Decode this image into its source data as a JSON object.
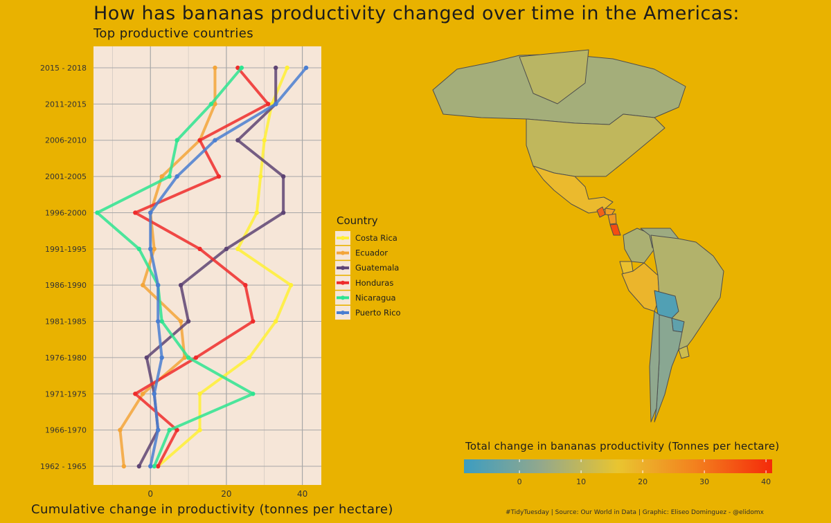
{
  "header": {
    "title": "How has bananas productivity changed over time in the Americas:",
    "subtitle": "Top productive countries"
  },
  "caption": "#TidyTuesday | Source: Our World in Data | Graphic: Eliseo Dominguez - @elidomx",
  "colors": {
    "background": "#E9B200",
    "panel": "#F6E6D8",
    "grid": "#A7A7A7"
  },
  "chart_data": [
    {
      "type": "line",
      "xlabel": "Cumulative change in productivity (tonnes per hectare)",
      "xlim": [
        -15,
        45
      ],
      "xticks": [
        0,
        20,
        40
      ],
      "categories": [
        "1962 - 1965",
        "1966-1970",
        "1971-1975",
        "1976-1980",
        "1981-1985",
        "1986-1990",
        "1991-1995",
        "1996-2000",
        "2001-2005",
        "2006-2010",
        "2011-2015",
        "2015 - 2018"
      ],
      "legend": {
        "title": "Country",
        "position": "right"
      },
      "series": [
        {
          "name": "Costa Rica",
          "color": "#FFF035",
          "values": [
            2,
            13,
            13,
            26,
            33,
            37,
            23,
            28,
            29,
            30,
            32,
            36
          ]
        },
        {
          "name": "Ecuador",
          "color": "#F3A53A",
          "values": [
            -7,
            -8,
            -2,
            9,
            8,
            -2,
            1,
            0,
            3,
            13,
            17,
            17
          ]
        },
        {
          "name": "Guatemala",
          "color": "#5E4474",
          "values": [
            -3,
            2,
            1,
            -1,
            10,
            8,
            20,
            35,
            35,
            23,
            33,
            33
          ]
        },
        {
          "name": "Honduras",
          "color": "#EE2B2B",
          "values": [
            2,
            7,
            -4,
            12,
            27,
            25,
            13,
            -4,
            18,
            13,
            31,
            23
          ]
        },
        {
          "name": "Nicaragua",
          "color": "#2EE490",
          "values": [
            1,
            5,
            27,
            10,
            3,
            2,
            -3,
            -14,
            5,
            7,
            16,
            24
          ]
        },
        {
          "name": "Puerto Rico",
          "color": "#4A7ED1",
          "values": [
            0,
            2,
            1,
            3,
            2,
            2,
            0,
            0,
            7,
            17,
            33,
            41
          ]
        }
      ]
    },
    {
      "type": "heatmap",
      "title": "Total change in bananas productivity (Tonnes per hectare)",
      "scale": {
        "min": -9,
        "max": 41,
        "ticks": [
          0,
          10,
          20,
          30,
          40
        ],
        "colors": [
          "#3C9DC1",
          "#93A88C",
          "#E9C530",
          "#F3811E",
          "#F42A0A"
        ]
      },
      "regions": [
        {
          "name": "Canada",
          "value": 6
        },
        {
          "name": "United States",
          "value": 10
        },
        {
          "name": "Mexico",
          "value": 18
        },
        {
          "name": "Guatemala",
          "value": 33
        },
        {
          "name": "Honduras",
          "value": 23
        },
        {
          "name": "Nicaragua",
          "value": 24
        },
        {
          "name": "Costa Rica",
          "value": 36
        },
        {
          "name": "Colombia",
          "value": 7
        },
        {
          "name": "Venezuela",
          "value": 5
        },
        {
          "name": "Ecuador",
          "value": 17
        },
        {
          "name": "Peru",
          "value": 19
        },
        {
          "name": "Brazil",
          "value": 8
        },
        {
          "name": "Bolivia",
          "value": -6
        },
        {
          "name": "Paraguay",
          "value": -4
        },
        {
          "name": "Argentina",
          "value": 2
        },
        {
          "name": "Chile",
          "value": 3
        },
        {
          "name": "Uruguay",
          "value": 12
        },
        {
          "name": "Greenland",
          "value": 9
        }
      ]
    }
  ]
}
